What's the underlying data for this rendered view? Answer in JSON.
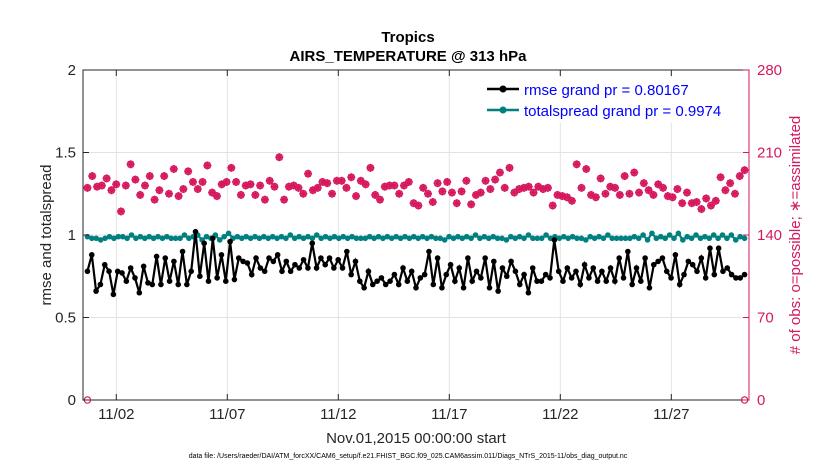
{
  "chart_data": {
    "type": "line",
    "title": "Tropics",
    "subtitle": "AIRS_TEMPERATURE @ 313 hPa",
    "xlabel": "Nov.01,2015 00:00:00 start",
    "ylabel": "rmse and totalspread",
    "ylabel_right": "# of obs: o=possible; ∗=assimilated",
    "footnote": "data file: /Users/raeder/DAI/ATM_forcXX/CAM6_setup/f.e21.FHIST_BGC.f09_025.CAM6assim.011/Diags_NTrS_2015-11/obs_diag_output.nc",
    "x_range": [
      0.5,
      30.5
    ],
    "ylim": [
      0,
      2
    ],
    "ylim_right": [
      0,
      280
    ],
    "y_ticks": [
      "0",
      "0.5",
      "1",
      "1.5",
      "2"
    ],
    "y_ticks_right": [
      "0",
      "70",
      "140",
      "210",
      "280"
    ],
    "x_ticks": [
      {
        "value": 2,
        "label": "11/02"
      },
      {
        "value": 7,
        "label": "11/07"
      },
      {
        "value": 12,
        "label": "11/12"
      },
      {
        "value": 17,
        "label": "11/17"
      },
      {
        "value": 22,
        "label": "11/22"
      },
      {
        "value": 27,
        "label": "11/27"
      }
    ],
    "grid": true,
    "legend_position": "top-right",
    "series": [
      {
        "name": "rmse grand pr = 0.80167",
        "color": "#000000",
        "marker": "filled-circle",
        "axis": "left",
        "values": [
          0.78,
          0.88,
          0.66,
          0.7,
          0.82,
          0.78,
          0.64,
          0.78,
          0.77,
          0.72,
          0.8,
          0.74,
          0.65,
          0.81,
          0.71,
          0.7,
          0.87,
          0.7,
          0.86,
          0.72,
          0.84,
          0.7,
          0.9,
          0.7,
          0.78,
          1.02,
          0.75,
          0.95,
          0.72,
          0.98,
          0.74,
          0.88,
          0.72,
          0.96,
          0.73,
          0.86,
          0.84,
          0.83,
          0.76,
          0.86,
          0.8,
          0.78,
          0.86,
          0.84,
          0.88,
          0.78,
          0.84,
          0.78,
          0.82,
          0.8,
          0.85,
          0.8,
          0.95,
          0.8,
          0.86,
          0.82,
          0.86,
          0.8,
          0.85,
          0.8,
          0.9,
          0.76,
          0.84,
          0.72,
          0.68,
          0.78,
          0.7,
          0.72,
          0.74,
          0.7,
          0.72,
          0.76,
          0.7,
          0.8,
          0.72,
          0.78,
          0.68,
          0.74,
          0.76,
          0.9,
          0.7,
          0.86,
          0.68,
          0.76,
          0.82,
          0.72,
          0.8,
          0.68,
          0.86,
          0.72,
          0.78,
          0.74,
          0.86,
          0.68,
          0.84,
          0.66,
          0.8,
          0.75,
          0.84,
          0.78,
          0.7,
          0.76,
          0.65,
          0.8,
          0.72,
          0.72,
          0.76,
          0.74,
          0.97,
          0.78,
          0.72,
          0.8,
          0.74,
          0.78,
          0.7,
          0.82,
          0.74,
          0.8,
          0.72,
          0.78,
          0.72,
          0.8,
          0.72,
          0.86,
          0.74,
          0.9,
          0.7,
          0.8,
          0.72,
          0.86,
          0.68,
          0.82,
          0.84,
          0.86,
          0.78,
          0.74,
          0.88,
          0.7,
          0.76,
          0.84,
          0.82,
          0.78,
          0.86,
          0.74,
          0.92,
          0.76,
          0.92,
          0.78,
          0.8,
          0.76,
          0.74,
          0.74,
          0.76
        ]
      },
      {
        "name": "totalspread grand pr = 0.9974",
        "color": "#008080",
        "marker": "filled-circle",
        "axis": "left",
        "values": [
          0.99,
          0.98,
          0.98,
          0.97,
          0.98,
          0.99,
          0.98,
          0.99,
          0.99,
          0.98,
          1.0,
          0.98,
          0.99,
          0.98,
          0.99,
          0.98,
          0.99,
          0.98,
          0.99,
          0.98,
          0.98,
          0.98,
          1.0,
          0.98,
          0.99,
          1.0,
          0.97,
          0.99,
          0.98,
          1.0,
          0.97,
          0.99,
          1.01,
          0.98,
          0.99,
          0.98,
          0.99,
          0.98,
          0.99,
          0.98,
          0.99,
          0.98,
          0.99,
          0.98,
          0.99,
          0.98,
          1.0,
          0.98,
          0.99,
          0.98,
          0.99,
          0.98,
          1.0,
          0.98,
          0.99,
          0.98,
          0.99,
          0.98,
          0.99,
          0.98,
          0.99,
          0.98,
          0.98,
          0.98,
          0.99,
          0.98,
          0.99,
          0.98,
          0.99,
          0.98,
          0.99,
          0.98,
          0.99,
          0.98,
          0.99,
          0.98,
          0.99,
          0.98,
          0.99,
          0.98,
          0.98,
          0.97,
          0.99,
          0.98,
          0.99,
          0.98,
          0.99,
          0.98,
          1.0,
          0.98,
          0.99,
          0.98,
          0.99,
          0.98,
          0.98,
          0.97,
          0.99,
          0.98,
          0.99,
          0.98,
          1.0,
          0.98,
          0.98,
          0.98,
          1.0,
          0.98,
          0.99,
          0.98,
          0.99,
          0.98,
          0.99,
          0.98,
          0.98,
          0.97,
          0.99,
          0.98,
          0.99,
          0.98,
          1.0,
          0.98,
          0.98,
          0.98,
          0.98,
          0.98,
          0.99,
          0.98,
          1.0,
          0.97,
          1.01,
          0.98,
          0.99,
          0.98,
          1.0,
          0.98,
          1.01,
          0.97,
          0.99,
          0.98,
          1.0,
          0.98,
          0.99,
          0.98,
          1.0,
          0.98,
          1.0,
          0.98,
          1.0,
          0.97,
          0.99,
          0.98
        ]
      },
      {
        "name": "# of obs possible",
        "color": "#d6185f",
        "marker": "circle",
        "axis": "right",
        "values": [
          180,
          190,
          181,
          182,
          188,
          178,
          183,
          160,
          182,
          200,
          187,
          174,
          182,
          190,
          170,
          178,
          190,
          175,
          196,
          173,
          179,
          194,
          185,
          179,
          185,
          199,
          176,
          173,
          183,
          185,
          197,
          185,
          174,
          182,
          183,
          174,
          182,
          170,
          186,
          181,
          206,
          170,
          181,
          182,
          180,
          175,
          192,
          178,
          180,
          185,
          184,
          175,
          186,
          186,
          180,
          189,
          173,
          186,
          183,
          197,
          174,
          170,
          181,
          182,
          182,
          175,
          182,
          185,
          167,
          165,
          180,
          175,
          168,
          184,
          177,
          185,
          176,
          167,
          177,
          186,
          166,
          174,
          176,
          186,
          179,
          187,
          193,
          180,
          197,
          176,
          179,
          180,
          181,
          176,
          181,
          179,
          180,
          165,
          174,
          173,
          172,
          169,
          200,
          180,
          196,
          174,
          172,
          188,
          175,
          181,
          180,
          174,
          190,
          175,
          193,
          176,
          184,
          178,
          174,
          183,
          180,
          173,
          172,
          179,
          167,
          176,
          167,
          168,
          162,
          171,
          165,
          169,
          189,
          178,
          184,
          175,
          190,
          195
        ]
      },
      {
        "name": "# of obs assimilated",
        "color": "#d6185f",
        "marker": "asterisk",
        "axis": "right",
        "values": [
          180,
          190,
          181,
          182,
          188,
          178,
          183,
          160,
          182,
          200,
          187,
          174,
          182,
          190,
          170,
          178,
          190,
          175,
          196,
          173,
          179,
          194,
          185,
          179,
          185,
          199,
          176,
          173,
          183,
          185,
          197,
          185,
          174,
          182,
          183,
          174,
          182,
          170,
          186,
          181,
          206,
          170,
          181,
          182,
          180,
          175,
          192,
          178,
          180,
          185,
          184,
          175,
          186,
          186,
          180,
          189,
          173,
          186,
          183,
          197,
          174,
          170,
          181,
          182,
          182,
          175,
          182,
          185,
          167,
          165,
          180,
          175,
          168,
          184,
          177,
          185,
          176,
          167,
          177,
          186,
          166,
          174,
          176,
          186,
          179,
          187,
          193,
          180,
          197,
          176,
          179,
          180,
          181,
          176,
          181,
          179,
          180,
          165,
          174,
          173,
          172,
          169,
          200,
          180,
          196,
          174,
          172,
          188,
          175,
          181,
          180,
          174,
          190,
          175,
          193,
          176,
          184,
          178,
          174,
          183,
          180,
          173,
          172,
          179,
          167,
          176,
          167,
          168,
          162,
          171,
          165,
          169,
          189,
          178,
          184,
          175,
          190,
          195
        ]
      }
    ]
  }
}
